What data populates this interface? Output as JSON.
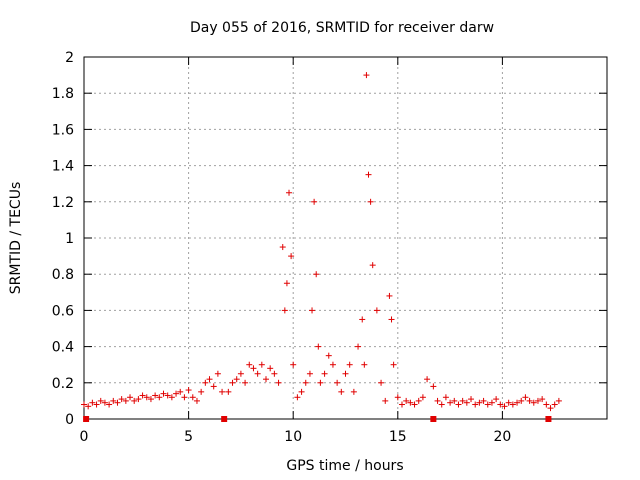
{
  "chart_data": {
    "type": "scatter",
    "title": "Day 055 of 2016, SRMTID for receiver darw",
    "xlabel": "GPS time / hours",
    "ylabel": "SRMTID / TECUs",
    "xlim": [
      0,
      25
    ],
    "ylim": [
      0,
      2
    ],
    "xticks": [
      "0",
      "5",
      "10",
      "15",
      "20"
    ],
    "yticks": [
      "0",
      "0.2",
      "0.4",
      "0.6",
      "0.8",
      "1",
      "1.2",
      "1.4",
      "1.6",
      "1.8",
      "2"
    ],
    "grid": true,
    "marker": "+",
    "color": "#e00000",
    "series": [
      {
        "x": [
          0.0,
          0.2,
          0.4,
          0.6,
          0.8,
          1.0,
          1.2,
          1.4,
          1.6,
          1.8,
          2.0,
          2.2,
          2.4,
          2.6,
          2.8,
          3.0,
          3.2,
          3.4,
          3.6,
          3.8,
          4.0,
          4.2,
          4.4,
          4.6,
          4.8,
          5.0,
          5.2,
          5.4,
          5.6,
          5.8,
          6.0,
          6.2,
          6.4,
          6.6,
          6.9,
          7.1,
          7.3,
          7.5,
          7.7,
          7.9,
          8.1,
          8.3,
          8.5,
          8.7,
          8.9,
          9.1,
          9.3,
          9.5,
          9.6,
          9.7,
          9.8,
          9.9,
          10.0,
          10.2,
          10.4,
          10.6,
          10.8,
          10.9,
          11.0,
          11.1,
          11.2,
          11.3,
          11.5,
          11.7,
          11.9,
          12.1,
          12.3,
          12.5,
          12.7,
          12.9,
          13.1,
          13.3,
          13.4,
          13.5,
          13.6,
          13.7,
          13.8,
          14.0,
          14.2,
          14.4,
          14.6,
          14.7,
          14.8,
          15.0,
          15.2,
          15.4,
          15.6,
          15.8,
          16.0,
          16.2,
          16.4,
          16.7,
          16.9,
          17.1,
          17.3,
          17.5,
          17.7,
          17.9,
          18.1,
          18.3,
          18.5,
          18.7,
          18.9,
          19.1,
          19.3,
          19.5,
          19.7,
          19.9,
          20.1,
          20.3,
          20.5,
          20.7,
          20.9,
          21.1,
          21.3,
          21.5,
          21.7,
          21.9,
          22.1,
          22.3,
          22.5,
          22.7
        ],
        "y": [
          0.08,
          0.07,
          0.09,
          0.08,
          0.1,
          0.09,
          0.08,
          0.1,
          0.09,
          0.11,
          0.1,
          0.12,
          0.1,
          0.11,
          0.13,
          0.12,
          0.11,
          0.13,
          0.12,
          0.14,
          0.13,
          0.12,
          0.14,
          0.15,
          0.12,
          0.16,
          0.12,
          0.1,
          0.15,
          0.2,
          0.22,
          0.18,
          0.25,
          0.15,
          0.15,
          0.2,
          0.22,
          0.25,
          0.2,
          0.3,
          0.28,
          0.25,
          0.3,
          0.22,
          0.28,
          0.25,
          0.2,
          0.95,
          0.6,
          0.75,
          1.25,
          0.9,
          0.3,
          0.12,
          0.15,
          0.2,
          0.25,
          0.6,
          1.2,
          0.8,
          0.4,
          0.2,
          0.25,
          0.35,
          0.3,
          0.2,
          0.15,
          0.25,
          0.3,
          0.15,
          0.4,
          0.55,
          0.3,
          1.9,
          1.35,
          1.2,
          0.85,
          0.6,
          0.2,
          0.1,
          0.68,
          0.55,
          0.3,
          0.12,
          0.08,
          0.1,
          0.09,
          0.08,
          0.1,
          0.12,
          0.22,
          0.18,
          0.1,
          0.08,
          0.12,
          0.09,
          0.1,
          0.08,
          0.1,
          0.09,
          0.11,
          0.08,
          0.09,
          0.1,
          0.08,
          0.09,
          0.11,
          0.08,
          0.07,
          0.09,
          0.08,
          0.09,
          0.1,
          0.12,
          0.1,
          0.09,
          0.1,
          0.11,
          0.08,
          0.06,
          0.08,
          0.1
        ]
      }
    ],
    "markers_at_zero": [
      0.1,
      6.7,
      16.7,
      22.2
    ]
  }
}
